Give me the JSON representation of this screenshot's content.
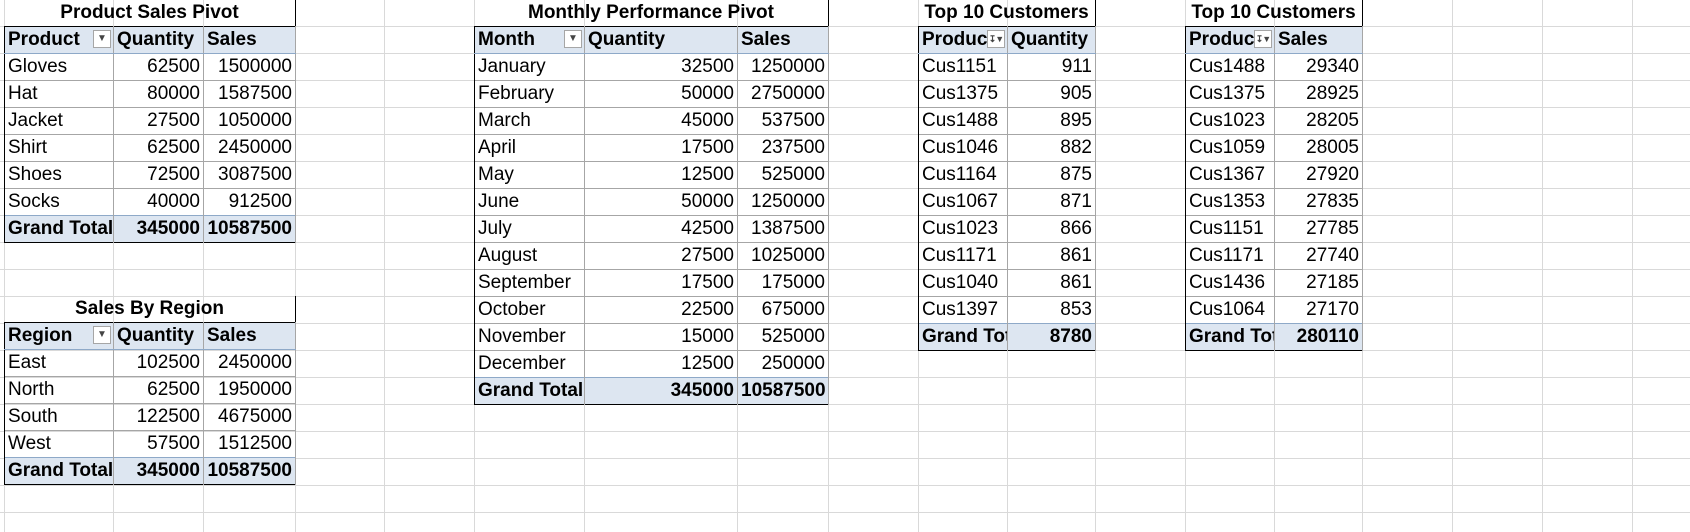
{
  "product_pivot": {
    "title": "Product Sales Pivot",
    "headers": [
      "Product",
      "Quantity",
      "Sales"
    ],
    "rows": [
      [
        "Gloves",
        "62500",
        "1500000"
      ],
      [
        "Hat",
        "80000",
        "1587500"
      ],
      [
        "Jacket",
        "27500",
        "1050000"
      ],
      [
        "Shirt",
        "62500",
        "2450000"
      ],
      [
        "Shoes",
        "72500",
        "3087500"
      ],
      [
        "Socks",
        "40000",
        "912500"
      ]
    ],
    "total": [
      "Grand Total",
      "345000",
      "10587500"
    ]
  },
  "region_pivot": {
    "title": "Sales By Region",
    "headers": [
      "Region",
      "Quantity",
      "Sales"
    ],
    "rows": [
      [
        "East",
        "102500",
        "2450000"
      ],
      [
        "North",
        "62500",
        "1950000"
      ],
      [
        "South",
        "122500",
        "4675000"
      ],
      [
        "West",
        "57500",
        "1512500"
      ]
    ],
    "total": [
      "Grand Total",
      "345000",
      "10587500"
    ]
  },
  "monthly_pivot": {
    "title": "Monthly Performance Pivot",
    "headers": [
      "Month",
      "Quantity",
      "Sales"
    ],
    "rows": [
      [
        "January",
        "32500",
        "1250000"
      ],
      [
        "February",
        "50000",
        "2750000"
      ],
      [
        "March",
        "45000",
        "537500"
      ],
      [
        "April",
        "17500",
        "237500"
      ],
      [
        "May",
        "12500",
        "525000"
      ],
      [
        "June",
        "50000",
        "1250000"
      ],
      [
        "July",
        "42500",
        "1387500"
      ],
      [
        "August",
        "27500",
        "1025000"
      ],
      [
        "September",
        "17500",
        "175000"
      ],
      [
        "October",
        "22500",
        "675000"
      ],
      [
        "November",
        "15000",
        "525000"
      ],
      [
        "December",
        "12500",
        "250000"
      ]
    ],
    "total": [
      "Grand Total",
      "345000",
      "10587500"
    ]
  },
  "top_qty_pivot": {
    "title": "Top 10 Customers",
    "headers": [
      "Produc",
      "Quantity"
    ],
    "rows": [
      [
        "Cus1151",
        "911"
      ],
      [
        "Cus1375",
        "905"
      ],
      [
        "Cus1488",
        "895"
      ],
      [
        "Cus1046",
        "882"
      ],
      [
        "Cus1164",
        "875"
      ],
      [
        "Cus1067",
        "871"
      ],
      [
        "Cus1023",
        "866"
      ],
      [
        "Cus1171",
        "861"
      ],
      [
        "Cus1040",
        "861"
      ],
      [
        "Cus1397",
        "853"
      ]
    ],
    "total": [
      "Grand Tot",
      "8780"
    ]
  },
  "top_sales_pivot": {
    "title": "Top 10 Customers",
    "headers": [
      "Produc",
      "Sales"
    ],
    "rows": [
      [
        "Cus1488",
        "29340"
      ],
      [
        "Cus1375",
        "28925"
      ],
      [
        "Cus1023",
        "28205"
      ],
      [
        "Cus1059",
        "28005"
      ],
      [
        "Cus1367",
        "27920"
      ],
      [
        "Cus1353",
        "27835"
      ],
      [
        "Cus1151",
        "27785"
      ],
      [
        "Cus1171",
        "27740"
      ],
      [
        "Cus1436",
        "27185"
      ],
      [
        "Cus1064",
        "27170"
      ]
    ],
    "total": [
      "Grand Tot",
      "280110"
    ]
  },
  "icons": {
    "dropdown": "dropdown-arrow-icon",
    "filter": "filter-sort-icon"
  },
  "colors": {
    "pivot_header_bg": "#dde6f1",
    "gridline": "#d9d9d9"
  }
}
